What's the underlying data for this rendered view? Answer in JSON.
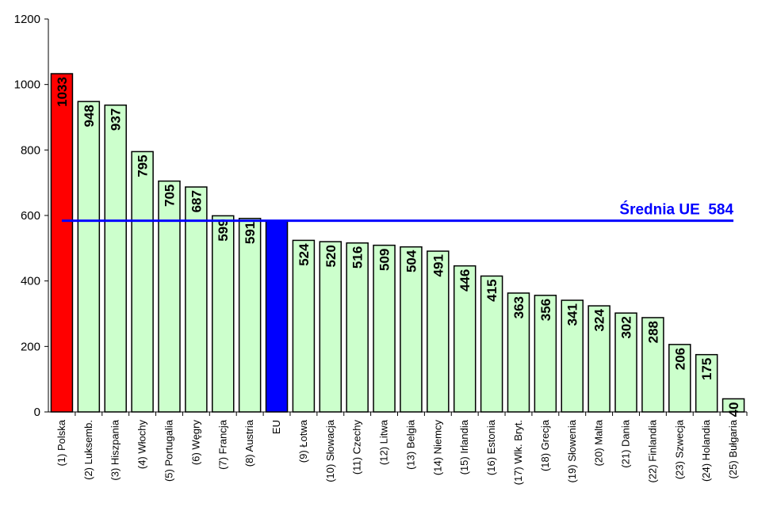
{
  "chart_data": {
    "type": "bar",
    "categories": [
      "(1) Polska",
      "(2) Luksemb.",
      "(3) Hiszpania",
      "(4) Włochy",
      "(5) Portugalia",
      "(6) Węgry",
      "(7) Francja",
      "(8) Austria",
      "EU",
      "(9) Łotwa",
      "(10) Słowacja",
      "(11) Czechy",
      "(12) Litwa",
      "(13) Belgia",
      "(14) Niemcy",
      "(15) Irlandia",
      "(16) Estonia",
      "(17) Wlk. Bryt.",
      "(18) Grecja",
      "(19) Słowenia",
      "(20) Malta",
      "(21) Dania",
      "(22) Finlandia",
      "(23) Szwecja",
      "(24) Holandia",
      "(25) Bułgaria"
    ],
    "values": [
      1033,
      948,
      937,
      795,
      705,
      687,
      599,
      591,
      584,
      524,
      520,
      516,
      509,
      504,
      491,
      446,
      415,
      363,
      356,
      341,
      324,
      302,
      288,
      206,
      175,
      40
    ],
    "value_labels": [
      "1033",
      "948",
      "937",
      "795",
      "705",
      "687",
      "599",
      "591",
      "",
      "524",
      "520",
      "516",
      "509",
      "504",
      "491",
      "446",
      "415",
      "363",
      "356",
      "341",
      "324",
      "302",
      "288",
      "206",
      "175",
      "40"
    ],
    "ylim": [
      0,
      1200
    ],
    "yticks": [
      "0",
      "200",
      "400",
      "600",
      "800",
      "1000",
      "1200"
    ],
    "title": "",
    "xlabel": "",
    "ylabel": "",
    "grid": false,
    "legend": "none",
    "reference_line": {
      "value": 584,
      "label": "Średnia UE  584",
      "color": "#0000ff"
    },
    "colors": {
      "default": "#ccffcc",
      "highlight": "#ff0000",
      "eu": "#0000ff",
      "outline": "#000000"
    },
    "bar_color_keys": [
      "highlight",
      "default",
      "default",
      "default",
      "default",
      "default",
      "default",
      "default",
      "eu",
      "default",
      "default",
      "default",
      "default",
      "default",
      "default",
      "default",
      "default",
      "default",
      "default",
      "default",
      "default",
      "default",
      "default",
      "default",
      "default",
      "default"
    ]
  }
}
